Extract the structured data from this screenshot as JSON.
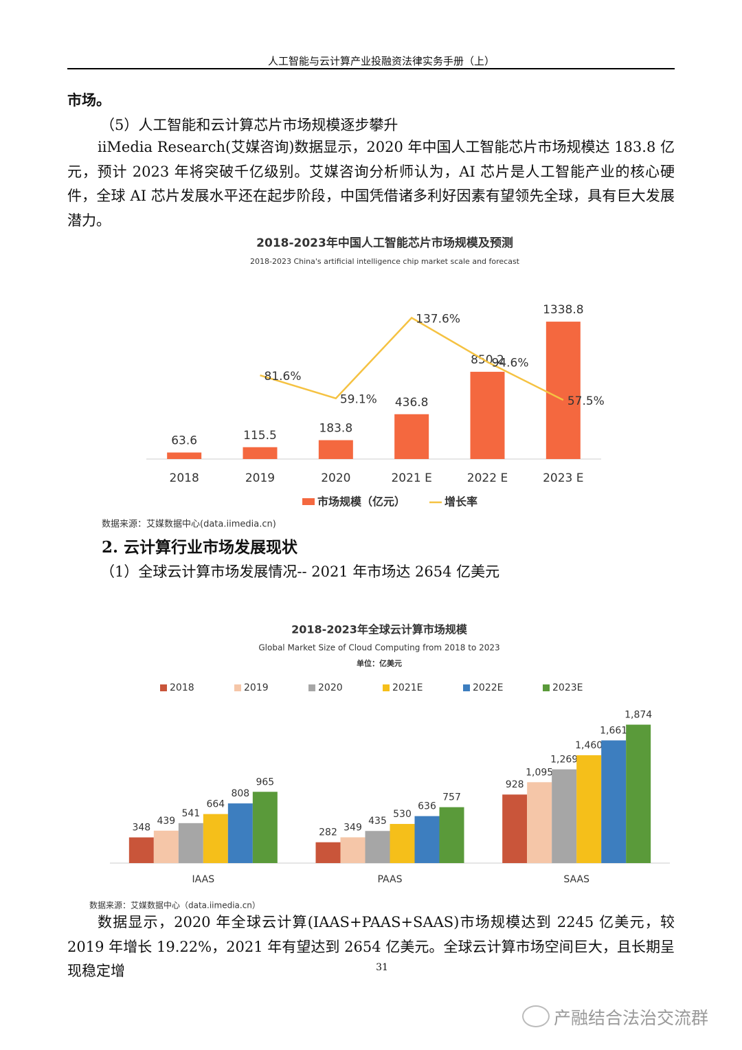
{
  "header": {
    "title": "人工智能与云计算产业投融资法律实务手册（上）"
  },
  "paragraphs": [
    "市场。",
    "（5）人工智能和云计算芯片市场规模逐步攀升",
    "iiMedia Research(艾媒咨询)数据显示，2020 年中国人工智能芯片市场规模达 183.8 亿元，预计 2023 年将突破千亿级别。艾媒咨询分析师认为，AI 芯片是人工智能产业的核心硬件，全球 AI 芯片发展水平还在起步阶段，中国凭借诸多利好因素有望领先全球，具有巨大发展潜力。"
  ],
  "section": {
    "heading": "2. 云计算行业市场发展现状",
    "subheading": "（1）全球云计算市场发展情况-- 2021 年市场达 2654 亿美元"
  },
  "closing_paragraph": "数据显示，2020 年全球云计算(IAAS+PAAS+SAAS)市场规模达到 2245 亿美元，较 2019 年增长 19.22%，2021 年有望达到 2654 亿美元。全球云计算市场空间巨大，且长期呈现稳定增",
  "footer": {
    "page_number": "31",
    "watermark": "产融结合法治交流群"
  },
  "chart_data": [
    {
      "type": "bar",
      "title": "2018-2023年中国人工智能芯片市场规模及预测",
      "subtitle": "2018-2023 China's artificial intelligence chip market scale and forecast",
      "source": "数据来源：艾媒数据中心(data.iimedia.cn)",
      "categories": [
        "2018",
        "2019",
        "2020",
        "2021 E",
        "2022 E",
        "2023 E"
      ],
      "ylim": [
        0,
        1500
      ],
      "y2lim": [
        0,
        150
      ],
      "series": [
        {
          "name": "市场规模（亿元）",
          "color": "#f4683f",
          "values": [
            63.6,
            115.5,
            183.8,
            436.8,
            850.2,
            1338.8
          ]
        },
        {
          "name": "增长率",
          "color": "#f5c242",
          "type": "line",
          "axis": "y2",
          "values": [
            null,
            81.6,
            59.1,
            137.6,
            94.6,
            57.5
          ],
          "value_labels": [
            null,
            "81.6%",
            "59.1%",
            "137.6%",
            "94.6%",
            "57.5%"
          ]
        }
      ]
    },
    {
      "type": "bar",
      "title": "2018-2023年全球云计算市场规模",
      "subtitle": "Global Market Size of Cloud Computing from 2018 to 2023",
      "unit": "单位：亿美元",
      "source": "数据来源：艾媒数据中心（data.iimedia.cn）",
      "categories": [
        "IAAS",
        "PAAS",
        "SAAS"
      ],
      "ylim": [
        0,
        2000
      ],
      "series": [
        {
          "name": "2018",
          "color": "#c9553a",
          "values": [
            348,
            282,
            928
          ]
        },
        {
          "name": "2019",
          "color": "#f5c6a8",
          "values": [
            439,
            349,
            1095
          ],
          "value_labels": [
            "439",
            "349",
            "1,095"
          ]
        },
        {
          "name": "2020",
          "color": "#a6a6a6",
          "values": [
            541,
            435,
            1269
          ],
          "value_labels": [
            "541",
            "435",
            "1,269"
          ]
        },
        {
          "name": "2021E",
          "color": "#f5bf1a",
          "values": [
            664,
            530,
            1460
          ],
          "value_labels": [
            "664",
            "530",
            "1,460"
          ]
        },
        {
          "name": "2022E",
          "color": "#3d7ebf",
          "values": [
            808,
            636,
            1661
          ],
          "value_labels": [
            "808",
            "636",
            "1,661"
          ]
        },
        {
          "name": "2023E",
          "color": "#5a9a3a",
          "values": [
            965,
            757,
            1874
          ],
          "value_labels": [
            "965",
            "757",
            "1,874"
          ]
        }
      ]
    }
  ]
}
